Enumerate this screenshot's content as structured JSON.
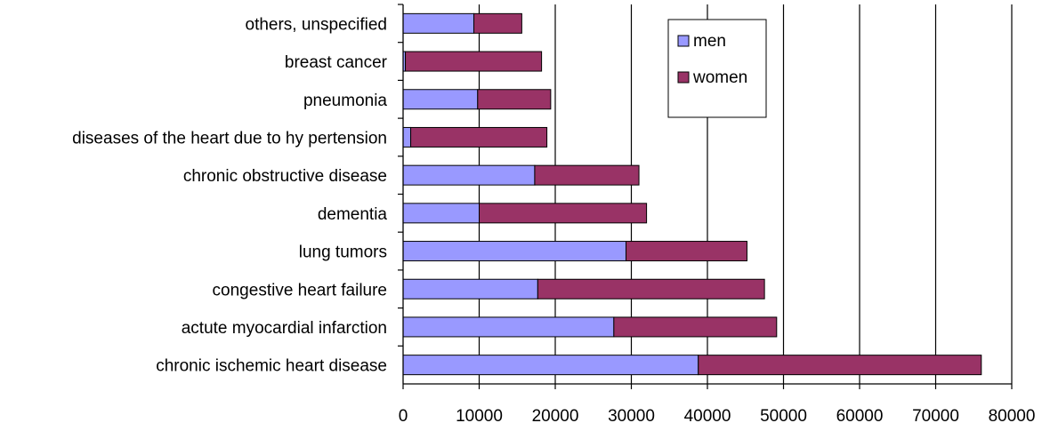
{
  "chart_data": {
    "type": "bar",
    "orientation": "horizontal",
    "stacked": true,
    "categories": [
      "others, unspecified",
      "breast cancer",
      "pneumonia",
      "diseases of the heart due to hy pertension",
      "chronic obstructive disease",
      "dementia",
      "lung tumors",
      "congestive heart failure",
      "actute myocardial infarction",
      "chronic ischemic heart disease"
    ],
    "series": [
      {
        "name": "men",
        "color": "#9999ff",
        "values": [
          9300,
          300,
          9800,
          1000,
          17300,
          10000,
          29300,
          17700,
          27700,
          38800
        ]
      },
      {
        "name": "women",
        "color": "#993366",
        "values": [
          6300,
          17900,
          9600,
          17900,
          13700,
          22000,
          15900,
          29800,
          21400,
          37200
        ]
      }
    ],
    "xlim": [
      0,
      80000
    ],
    "xticks": [
      "0",
      "10000",
      "20000",
      "30000",
      "40000",
      "50000",
      "60000",
      "70000",
      "80000"
    ],
    "grid": "vertical major gridlines",
    "legend_position": "top-right, inside plot",
    "title": "",
    "xlabel": "",
    "ylabel": ""
  }
}
